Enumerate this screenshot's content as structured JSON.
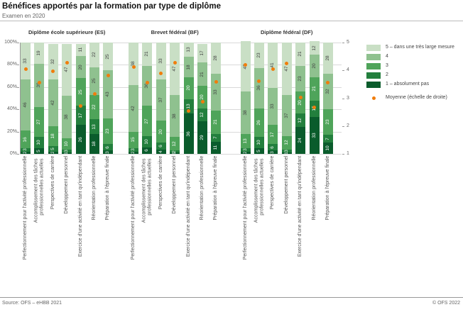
{
  "title": "Bénéfices apportés par la formation par type de diplôme",
  "subtitle": "Examen en 2020",
  "footer": {
    "source": "Source: OFS – eHBB 2021",
    "copyright": "© OFS 2022"
  },
  "colors": {
    "segments_1_to_5": [
      "#0a5c2c",
      "#237f3d",
      "#4fa45a",
      "#8fc18f",
      "#c9dfc5"
    ],
    "mean_dot": "#f07d0c",
    "label_on_dark": "#ffffff",
    "label_on_light": "#3d3d3d"
  },
  "chart_data": {
    "type": "bar",
    "stacked": true,
    "title": "Bénéfices apportés par la formation par type de diplôme",
    "subtitle": "Examen en 2020",
    "left_axis": {
      "ticks": [
        "0%",
        "20%",
        "40%",
        "60%",
        "80%",
        "100%"
      ],
      "range": [
        0,
        100
      ]
    },
    "right_axis": {
      "ticks": [
        "1",
        "2",
        "3",
        "4",
        "5"
      ],
      "range": [
        1,
        5
      ],
      "label": "Moyenne"
    },
    "grid": true,
    "legend_position": "right",
    "legend": [
      {
        "label": "5 – dans une très large mesure",
        "segment": 5
      },
      {
        "label": "4",
        "segment": 4
      },
      {
        "label": "3",
        "segment": 3
      },
      {
        "label": "2",
        "segment": 2
      },
      {
        "label": "1 – absolument pas",
        "segment": 1
      },
      {
        "label": "Moyenne  (échelle de droite)",
        "type": "dot"
      }
    ],
    "segment_order_bottom_to_top": [
      "1",
      "2",
      "3",
      "4",
      "5"
    ],
    "categories": [
      "Perfectionnement pour l'activité professionnelle",
      "Accomplissement des tâches\nprofessionnelles actuelles",
      "Perspectives de carrière",
      "Développement personnel",
      "Exercice d'une activité en tant qu'indépendant",
      "Réorientation professionnelle",
      "Préparation à l'épreuve finale"
    ],
    "groups": [
      {
        "name": "Diplôme école supérieure (ES)",
        "bars": [
          {
            "values": [
              2,
              3,
              16,
              46,
              33
            ],
            "mean": 4.05
          },
          {
            "values": [
              5,
              10,
              27,
              39,
              19
            ],
            "mean": 3.57
          },
          {
            "values": [
              2,
              5,
              18,
              42,
              32
            ],
            "mean": 3.98
          },
          {
            "values": [
              1,
              3,
              10,
              38,
              47
            ],
            "mean": 4.28
          },
          {
            "values": [
              26,
              17,
              25,
              20,
              11
            ],
            "mean": 2.73
          },
          {
            "values": [
              18,
              13,
              22,
              25,
              22
            ],
            "mean": 3.15
          },
          {
            "values": [
              3,
              6,
              23,
              43,
              25
            ],
            "mean": 3.81
          }
        ]
      },
      {
        "name": "Brevet fédéral (BF)",
        "bars": [
          {
            "values": [
              2,
              3,
              15,
              42,
              38
            ],
            "mean": 4.11
          },
          {
            "values": [
              6,
              10,
              27,
              36,
              21
            ],
            "mean": 3.56
          },
          {
            "values": [
              4,
              6,
              20,
              37,
              33
            ],
            "mean": 3.89
          },
          {
            "values": [
              1,
              2,
              12,
              38,
              47
            ],
            "mean": 4.28
          },
          {
            "values": [
              36,
              13,
              20,
              18,
              13
            ],
            "mean": 2.55
          },
          {
            "values": [
              29,
              12,
              20,
              21,
              17
            ],
            "mean": 2.88
          },
          {
            "values": [
              11,
              7,
              21,
              33,
              28
            ],
            "mean": 3.58
          }
        ]
      },
      {
        "name": "Diplôme fédéral (DF)",
        "bars": [
          {
            "values": [
              2,
              3,
              13,
              38,
              45
            ],
            "mean": 4.2
          },
          {
            "values": [
              5,
              10,
              26,
              36,
              23
            ],
            "mean": 3.62
          },
          {
            "values": [
              3,
              6,
              17,
              33,
              41
            ],
            "mean": 4.05
          },
          {
            "values": [
              1,
              3,
              12,
              37,
              47
            ],
            "mean": 4.26
          },
          {
            "values": [
              24,
              12,
              20,
              23,
              21
            ],
            "mean": 3.02
          },
          {
            "values": [
              33,
              15,
              21,
              20,
              12
            ],
            "mean": 2.68
          },
          {
            "values": [
              10,
              7,
              23,
              32,
              28
            ],
            "mean": 3.56
          }
        ]
      }
    ]
  }
}
